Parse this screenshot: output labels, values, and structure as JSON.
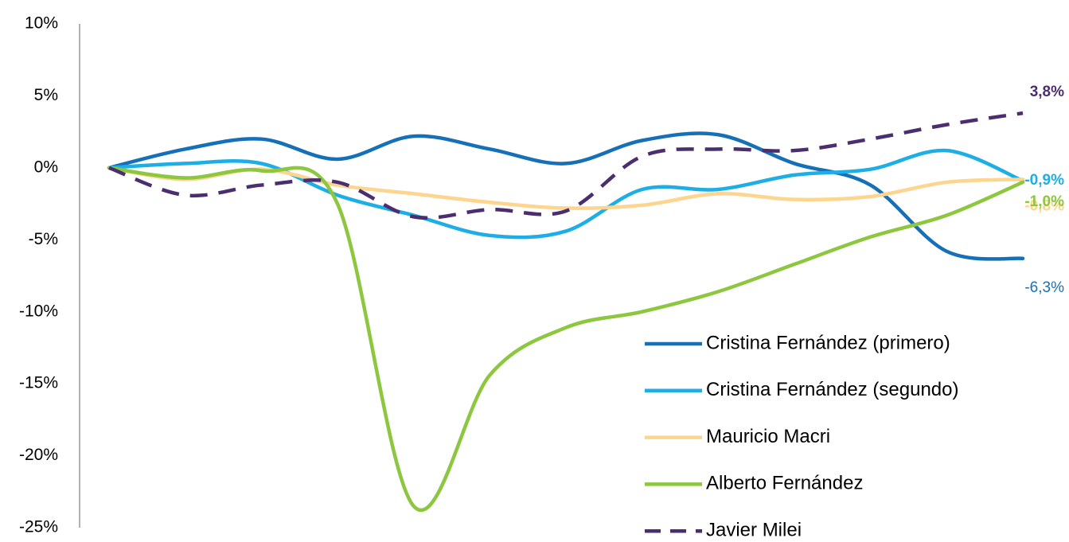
{
  "chart_data": {
    "type": "line",
    "categories": [
      null,
      null,
      null,
      null,
      null,
      null,
      null,
      null,
      null,
      null,
      null,
      null,
      null
    ],
    "series": [
      {
        "name": "Cristina Fernández (primero)",
        "color": "#1570b8",
        "values": [
          0,
          1.3,
          2.0,
          0.6,
          2.2,
          1.3,
          0.3,
          1.9,
          2.3,
          0.3,
          -1.2,
          -5.8,
          -6.3
        ],
        "value_labels": [
          null,
          null,
          null,
          null,
          null,
          null,
          null,
          null,
          null,
          null,
          null,
          null,
          "-6,3%"
        ]
      },
      {
        "name": "Cristina Fernández (segundo)",
        "color": "#1eaee6",
        "values": [
          0,
          0.3,
          0.3,
          -1.9,
          -3.3,
          -4.7,
          -4.4,
          -1.5,
          -1.5,
          -0.5,
          -0.1,
          1.2,
          -0.9
        ],
        "value_labels": [
          null,
          null,
          null,
          null,
          null,
          null,
          null,
          null,
          null,
          null,
          null,
          null,
          "-0,9%"
        ]
      },
      {
        "name": "Mauricio Macri",
        "color": "#fdd58e",
        "values": [
          0,
          -0.8,
          -0.1,
          -1.2,
          -1.8,
          -2.4,
          -2.8,
          -2.6,
          -1.8,
          -2.2,
          -2.0,
          -1.0,
          -0.8
        ],
        "value_labels": [
          null,
          null,
          null,
          null,
          null,
          null,
          null,
          null,
          null,
          null,
          null,
          null,
          "-0,8%"
        ]
      },
      {
        "name": "Alberto Fernández",
        "color": "#8dc63f",
        "values": [
          0,
          -0.7,
          -0.2,
          -2.5,
          -23.5,
          -14.4,
          -11.1,
          -10.0,
          -8.6,
          -6.7,
          -4.8,
          -3.3,
          -1.0
        ],
        "value_labels": [
          null,
          null,
          null,
          null,
          null,
          null,
          null,
          null,
          null,
          null,
          null,
          null,
          "-1,0%"
        ]
      },
      {
        "name": "Javier Milei",
        "color": "#4b2e70",
        "dashed": true,
        "values": [
          0,
          -1.9,
          -1.2,
          -1.0,
          -3.4,
          -2.9,
          -3.0,
          0.8,
          1.3,
          1.2,
          2.0,
          3.0,
          3.8
        ],
        "value_labels": [
          null,
          null,
          null,
          null,
          null,
          null,
          null,
          null,
          null,
          null,
          null,
          null,
          "3,8%"
        ]
      }
    ],
    "ylim": [
      -25,
      10
    ],
    "yticks": [
      {
        "value": -25,
        "label": "-25%"
      },
      {
        "value": -20,
        "label": "-20%"
      },
      {
        "value": -15,
        "label": "-15%"
      },
      {
        "value": -10,
        "label": "-10%"
      },
      {
        "value": -5,
        "label": "-5%"
      },
      {
        "value": 0,
        "label": "0%"
      },
      {
        "value": 5,
        "label": "5%"
      },
      {
        "value": 10,
        "label": "10%"
      }
    ],
    "legend": "lower right"
  }
}
